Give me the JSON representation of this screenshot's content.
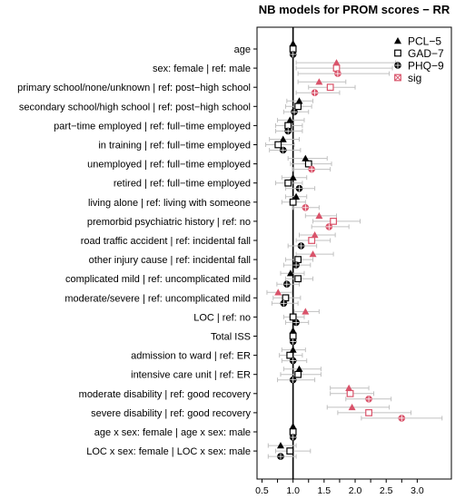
{
  "chart_data": {
    "type": "scatter",
    "subtype": "forest-plot",
    "title": "NB models for PROM scores − RR",
    "xlabel": "",
    "ylabel": "",
    "xlim": [
      0.42,
      3.55
    ],
    "x_ticks": [
      0.5,
      0.75,
      1.0,
      1.25,
      1.5,
      1.75,
      2.0,
      2.25,
      2.5,
      2.75,
      3.0
    ],
    "x_tick_labels": [
      "0.5",
      "",
      "1.0",
      "",
      "1.5",
      "",
      "2.0",
      "",
      "2.5",
      "",
      "3.0"
    ],
    "reference_line": 1.0,
    "categories": [
      "age",
      "sex: female | ref: male",
      "primary school/none/unknown | ref: post−high school",
      "secondary school/high school | ref: post−high school",
      "part−time employed | ref: full−time employed",
      "in training | ref: full−time employed",
      "unemployed | ref: full−time employed",
      "retired | ref: full−time employed",
      "living alone | ref: living with someone",
      "premorbid psychiatric history | ref: no",
      "road traffic accident | ref: incidental fall",
      "other injury cause | ref: incidental fall",
      "complicated mild | ref: uncomplicated mild",
      "moderate/severe | ref: uncomplicated mild",
      "LOC | ref: no",
      "Total ISS",
      "admission to ward | ref: ER",
      "intensive care unit | ref: ER",
      "moderate disability | ref: good recovery",
      "severe disability | ref: good recovery",
      "age x sex: female | age x sex: male",
      "LOC x sex: female | LOC x sex: male"
    ],
    "series": [
      {
        "name": "PCL−5",
        "marker": "triangle",
        "points": [
          {
            "est": 1.0,
            "lo": 0.99,
            "hi": 1.01,
            "sig": false
          },
          {
            "est": 1.7,
            "lo": 1.05,
            "hi": 2.65,
            "sig": true
          },
          {
            "est": 1.42,
            "lo": 1.08,
            "hi": 1.85,
            "sig": true
          },
          {
            "est": 1.1,
            "lo": 0.9,
            "hi": 1.32,
            "sig": false
          },
          {
            "est": 0.95,
            "lo": 0.75,
            "hi": 1.18,
            "sig": false
          },
          {
            "est": 0.84,
            "lo": 0.62,
            "hi": 1.1,
            "sig": false
          },
          {
            "est": 1.2,
            "lo": 0.92,
            "hi": 1.55,
            "sig": false
          },
          {
            "est": 1.0,
            "lo": 0.82,
            "hi": 1.22,
            "sig": false
          },
          {
            "est": 1.05,
            "lo": 0.88,
            "hi": 1.22,
            "sig": false
          },
          {
            "est": 1.42,
            "lo": 1.2,
            "hi": 1.7,
            "sig": true
          },
          {
            "est": 1.35,
            "lo": 1.1,
            "hi": 1.68,
            "sig": true
          },
          {
            "est": 1.32,
            "lo": 1.05,
            "hi": 1.65,
            "sig": true
          },
          {
            "est": 0.96,
            "lo": 0.8,
            "hi": 1.18,
            "sig": false
          },
          {
            "est": 0.76,
            "lo": 0.58,
            "hi": 0.98,
            "sig": true
          },
          {
            "est": 1.2,
            "lo": 1.02,
            "hi": 1.42,
            "sig": true
          },
          {
            "est": 1.0,
            "lo": 0.99,
            "hi": 1.01,
            "sig": false
          },
          {
            "est": 1.0,
            "lo": 0.82,
            "hi": 1.2,
            "sig": false
          },
          {
            "est": 1.1,
            "lo": 0.85,
            "hi": 1.45,
            "sig": false
          },
          {
            "est": 1.9,
            "lo": 1.6,
            "hi": 2.22,
            "sig": true
          },
          {
            "est": 1.95,
            "lo": 1.55,
            "hi": 2.55,
            "sig": true
          },
          {
            "est": 1.0,
            "lo": 0.99,
            "hi": 1.01,
            "sig": false
          },
          {
            "est": 0.8,
            "lo": 0.6,
            "hi": 1.05,
            "sig": false
          }
        ]
      },
      {
        "name": "GAD−7",
        "marker": "square",
        "points": [
          {
            "est": 1.0,
            "lo": 0.99,
            "hi": 1.01,
            "sig": false
          },
          {
            "est": 1.7,
            "lo": 1.05,
            "hi": 2.6,
            "sig": true
          },
          {
            "est": 1.6,
            "lo": 1.25,
            "hi": 2.0,
            "sig": true
          },
          {
            "est": 1.08,
            "lo": 0.88,
            "hi": 1.3,
            "sig": false
          },
          {
            "est": 0.92,
            "lo": 0.72,
            "hi": 1.15,
            "sig": false
          },
          {
            "est": 0.76,
            "lo": 0.56,
            "hi": 1.02,
            "sig": false
          },
          {
            "est": 1.25,
            "lo": 0.96,
            "hi": 1.62,
            "sig": false
          },
          {
            "est": 0.92,
            "lo": 0.72,
            "hi": 1.15,
            "sig": false
          },
          {
            "est": 1.0,
            "lo": 0.82,
            "hi": 1.2,
            "sig": false
          },
          {
            "est": 1.65,
            "lo": 1.32,
            "hi": 2.08,
            "sig": true
          },
          {
            "est": 1.3,
            "lo": 1.05,
            "hi": 1.6,
            "sig": true
          },
          {
            "est": 1.08,
            "lo": 0.88,
            "hi": 1.32,
            "sig": false
          },
          {
            "est": 1.08,
            "lo": 0.88,
            "hi": 1.32,
            "sig": false
          },
          {
            "est": 0.88,
            "lo": 0.68,
            "hi": 1.12,
            "sig": false
          },
          {
            "est": 1.0,
            "lo": 0.85,
            "hi": 1.18,
            "sig": false
          },
          {
            "est": 1.0,
            "lo": 0.99,
            "hi": 1.01,
            "sig": false
          },
          {
            "est": 0.95,
            "lo": 0.78,
            "hi": 1.15,
            "sig": false
          },
          {
            "est": 1.08,
            "lo": 0.8,
            "hi": 1.45,
            "sig": false
          },
          {
            "est": 1.92,
            "lo": 1.6,
            "hi": 2.3,
            "sig": true
          },
          {
            "est": 2.22,
            "lo": 1.72,
            "hi": 2.9,
            "sig": true
          },
          {
            "est": 1.0,
            "lo": 0.99,
            "hi": 1.01,
            "sig": false
          },
          {
            "est": 0.95,
            "lo": 0.72,
            "hi": 1.28,
            "sig": false
          }
        ]
      },
      {
        "name": "PHQ−9",
        "marker": "circle-plus",
        "points": [
          {
            "est": 1.0,
            "lo": 0.99,
            "hi": 1.01,
            "sig": false
          },
          {
            "est": 1.72,
            "lo": 1.08,
            "hi": 2.55,
            "sig": true
          },
          {
            "est": 1.35,
            "lo": 1.05,
            "hi": 1.75,
            "sig": true
          },
          {
            "est": 1.02,
            "lo": 0.85,
            "hi": 1.25,
            "sig": false
          },
          {
            "est": 0.92,
            "lo": 0.72,
            "hi": 1.15,
            "sig": false
          },
          {
            "est": 0.84,
            "lo": 0.62,
            "hi": 1.12,
            "sig": false
          },
          {
            "est": 1.3,
            "lo": 1.0,
            "hi": 1.6,
            "sig": true
          },
          {
            "est": 1.1,
            "lo": 0.88,
            "hi": 1.35,
            "sig": false
          },
          {
            "est": 1.2,
            "lo": 1.0,
            "hi": 1.42,
            "sig": true
          },
          {
            "est": 1.58,
            "lo": 1.3,
            "hi": 1.9,
            "sig": true
          },
          {
            "est": 1.13,
            "lo": 0.92,
            "hi": 1.38,
            "sig": false
          },
          {
            "est": 1.05,
            "lo": 0.85,
            "hi": 1.28,
            "sig": false
          },
          {
            "est": 0.9,
            "lo": 0.74,
            "hi": 1.1,
            "sig": false
          },
          {
            "est": 0.85,
            "lo": 0.66,
            "hi": 1.08,
            "sig": false
          },
          {
            "est": 1.05,
            "lo": 0.88,
            "hi": 1.25,
            "sig": false
          },
          {
            "est": 1.0,
            "lo": 0.99,
            "hi": 1.01,
            "sig": false
          },
          {
            "est": 1.0,
            "lo": 0.82,
            "hi": 1.22,
            "sig": false
          },
          {
            "est": 1.0,
            "lo": 0.75,
            "hi": 1.35,
            "sig": false
          },
          {
            "est": 2.22,
            "lo": 1.85,
            "hi": 2.58,
            "sig": true
          },
          {
            "est": 2.75,
            "lo": 2.1,
            "hi": 3.4,
            "sig": true
          },
          {
            "est": 1.0,
            "lo": 0.99,
            "hi": 1.01,
            "sig": false
          },
          {
            "est": 0.8,
            "lo": 0.6,
            "hi": 1.05,
            "sig": false
          }
        ]
      }
    ],
    "legend": {
      "placement": "top-right",
      "entries": [
        {
          "label": "PCL−5",
          "marker": "triangle"
        },
        {
          "label": "GAD−7",
          "marker": "square"
        },
        {
          "label": "PHQ−9",
          "marker": "circle-plus"
        },
        {
          "label": "sig",
          "marker": "sig"
        }
      ]
    },
    "colors": {
      "default": "#000000",
      "sig": "#d9536a",
      "errorbar": "#c0c0c0",
      "reference_line": "#000000"
    }
  }
}
